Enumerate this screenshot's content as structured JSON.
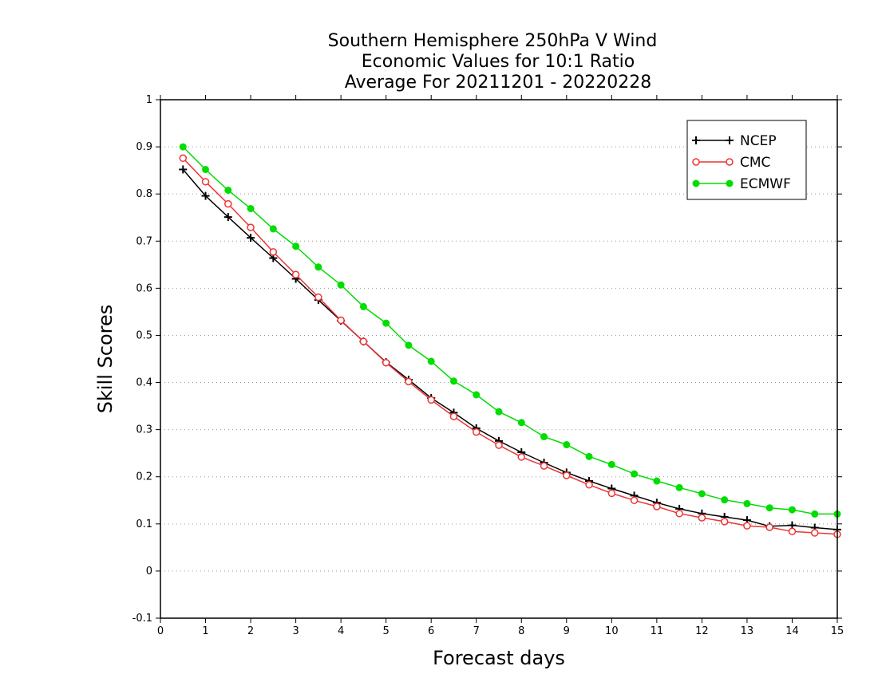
{
  "chart_data": {
    "type": "line",
    "title": [
      "Southern Hemisphere 250hPa V Wind",
      "Economic Values for 10:1 Ratio",
      "Average For 20211201 - 20220228"
    ],
    "xlabel": "Forecast days",
    "ylabel": "Skill Scores",
    "xlim": [
      0,
      15
    ],
    "ylim": [
      -0.1,
      1
    ],
    "xticks": [
      0,
      1,
      2,
      3,
      4,
      5,
      6,
      7,
      8,
      9,
      10,
      11,
      12,
      13,
      14,
      15
    ],
    "yticks": [
      -0.1,
      0,
      0.1,
      0.2,
      0.3,
      0.4,
      0.5,
      0.6,
      0.7,
      0.8,
      0.9,
      1
    ],
    "ytick_labels": [
      "-0.1",
      "0",
      "0.1",
      "0.2",
      "0.3",
      "0.4",
      "0.5",
      "0.6",
      "0.7",
      "0.8",
      "0.9",
      "1"
    ],
    "grid": "horizontal dotted",
    "legend_position": "top-right",
    "x": [
      0.5,
      1,
      1.5,
      2,
      2.5,
      3,
      3.5,
      4,
      4.5,
      5,
      5.5,
      6,
      6.5,
      7,
      7.5,
      8,
      8.5,
      9,
      9.5,
      10,
      10.5,
      11,
      11.5,
      12,
      12.5,
      13,
      13.5,
      14,
      14.5,
      15
    ],
    "series": [
      {
        "name": "NCEP",
        "color": "#000000",
        "marker": "plus",
        "values": [
          0.852,
          0.796,
          0.751,
          0.707,
          0.664,
          0.62,
          0.575,
          0.531,
          0.487,
          0.443,
          0.406,
          0.367,
          0.336,
          0.303,
          0.276,
          0.252,
          0.23,
          0.209,
          0.191,
          0.175,
          0.16,
          0.145,
          0.132,
          0.122,
          0.115,
          0.108,
          0.095,
          0.097,
          0.092,
          0.088
        ]
      },
      {
        "name": "CMC",
        "color": "#ee3333",
        "marker": "open-circle",
        "values": [
          0.876,
          0.826,
          0.779,
          0.729,
          0.677,
          0.629,
          0.581,
          0.532,
          0.487,
          0.442,
          0.402,
          0.363,
          0.328,
          0.295,
          0.267,
          0.242,
          0.223,
          0.203,
          0.183,
          0.165,
          0.15,
          0.137,
          0.122,
          0.113,
          0.105,
          0.096,
          0.093,
          0.084,
          0.081,
          0.078
        ]
      },
      {
        "name": "ECMWF",
        "color": "#00dd00",
        "marker": "filled-circle",
        "values": [
          0.9,
          0.852,
          0.808,
          0.769,
          0.726,
          0.689,
          0.645,
          0.607,
          0.561,
          0.526,
          0.479,
          0.445,
          0.403,
          0.374,
          0.338,
          0.315,
          0.285,
          0.268,
          0.243,
          0.226,
          0.206,
          0.191,
          0.177,
          0.164,
          0.151,
          0.143,
          0.134,
          0.13,
          0.121,
          0.121
        ]
      }
    ]
  }
}
